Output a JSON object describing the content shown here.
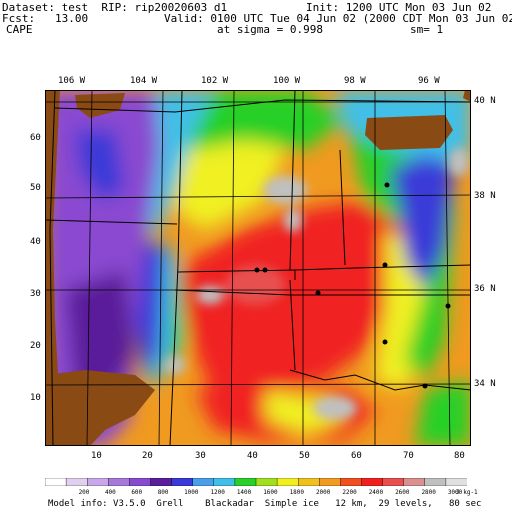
{
  "header": {
    "dataset_line": "Dataset: test  RIP: rip20020603 d1",
    "init_line": "Init: 1200 UTC Mon 03 Jun 02",
    "fcst_line": "Fcst:   13.00",
    "valid_line": "Valid: 0100 UTC Tue 04 Jun 02 (2000 CDT Mon 03 Jun 02)",
    "field_name": "CAPE",
    "sigma_line": "at sigma = 0.998",
    "smooth_line": "sm= 1"
  },
  "map": {
    "longitude_labels": [
      "106 W",
      "104 W",
      "102 W",
      "100 W",
      "98 W",
      "96 W"
    ],
    "latitude_labels": [
      "40 N",
      "38 N",
      "36 N",
      "34 N"
    ],
    "x_grid_labels": [
      "10",
      "20",
      "30",
      "40",
      "50",
      "60",
      "70",
      "80"
    ],
    "y_grid_labels": [
      "60",
      "50",
      "40",
      "30",
      "20",
      "10"
    ],
    "colors": {
      "terrain": "#8a4a14",
      "purple_dark": "#5a1e9a",
      "purple": "#8a4ad0",
      "blue": "#3a3ad8",
      "cyan": "#40c0e8",
      "green": "#28d028",
      "yellow": "#f0f020",
      "orange": "#f09a20",
      "red": "#f02020",
      "red_light": "#e85050",
      "gray": "#c0c0c0"
    }
  },
  "colorbar": {
    "labels": [
      "200",
      "400",
      "600",
      "800",
      "1000",
      "1200",
      "1400",
      "1600",
      "1800",
      "2000",
      "2200",
      "2400",
      "2600",
      "2800",
      "3000"
    ],
    "units": "J kg-1",
    "colors": [
      "#ffffff",
      "#e0d0f0",
      "#c8a8e8",
      "#a878d8",
      "#8a4ad0",
      "#5a1e9a",
      "#3a3ad8",
      "#4aa0e8",
      "#40c0e8",
      "#28d028",
      "#a0e020",
      "#f0f020",
      "#f0c020",
      "#f09a20",
      "#f05020",
      "#f02020",
      "#e85050",
      "#d89090",
      "#c0c0c0",
      "#e0e0e0"
    ]
  },
  "footer": {
    "model_info": "Model info: V3.5.0  Grell    Blackadar  Simple ice   12 km,  29 levels,   80 sec"
  }
}
